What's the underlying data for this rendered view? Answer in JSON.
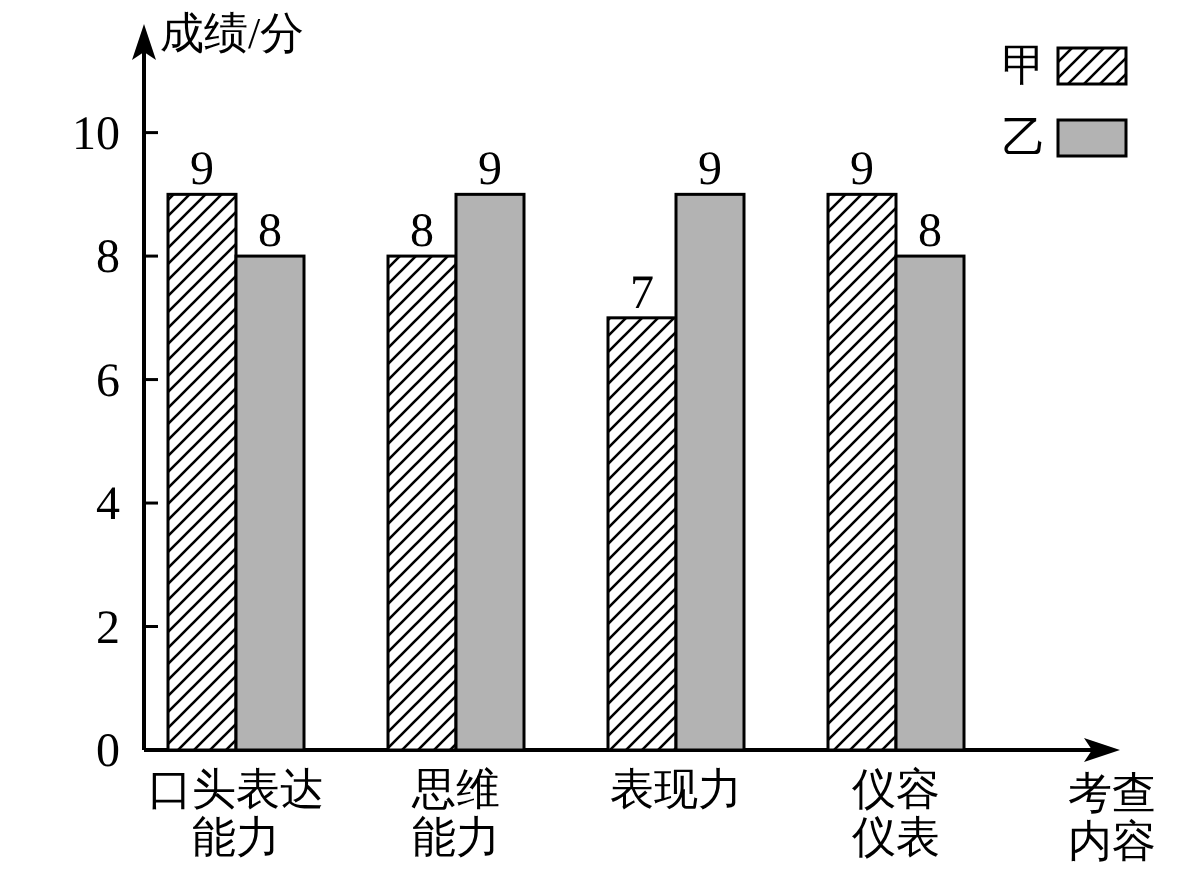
{
  "chart_data": {
    "type": "bar",
    "ylabel": "成绩/分",
    "xlabel": "考查内容",
    "categories": [
      "口头表达能力",
      "思维能力",
      "表现力",
      "仪容仪表"
    ],
    "series": [
      {
        "name": "甲",
        "color": "#000000",
        "values": [
          9,
          8,
          7,
          9
        ]
      },
      {
        "name": "乙",
        "color": "#b3b3b3",
        "values": [
          8,
          9,
          9,
          8
        ]
      }
    ],
    "ylim": [
      0,
      11.5
    ],
    "yticks": [
      0,
      2,
      4,
      6,
      8,
      10
    ],
    "data_labels": true,
    "legend": "top right"
  }
}
